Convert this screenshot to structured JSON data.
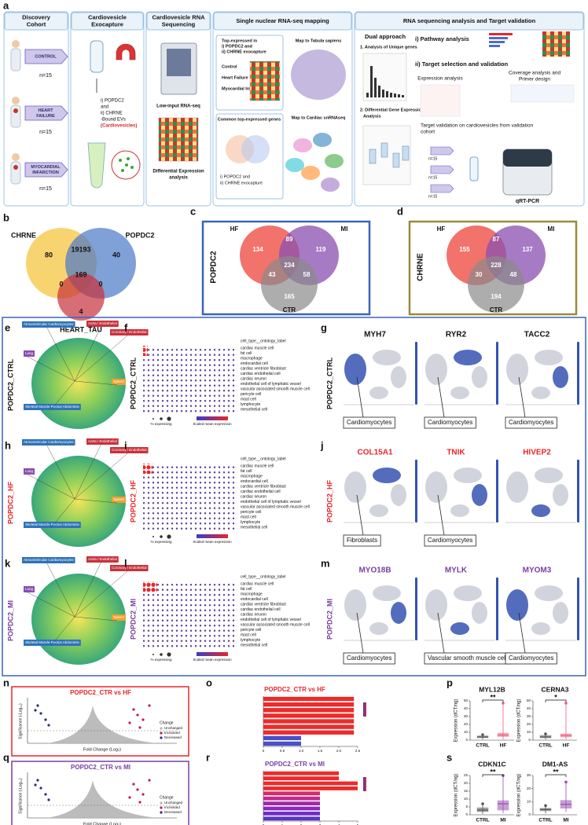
{
  "figure": {
    "a": {
      "label": "a",
      "stages": [
        [
          "Discovery",
          "Cohort"
        ],
        [
          "Cardiovesicle",
          "Exocapture"
        ],
        [
          "Cardiovesicle RNA",
          "Sequencing"
        ],
        [
          "Single nuclear RNA-seq mapping"
        ],
        [
          "RNA sequencing analysis and Target validation"
        ]
      ],
      "cohorts": [
        {
          "name": [
            "CONTROL"
          ],
          "n": "n=15"
        },
        {
          "name": [
            "HEART",
            "FAILURE"
          ],
          "n": "n=15"
        },
        {
          "name": [
            "MYOCARDIAL",
            "INFARCTION"
          ],
          "n": "n=15"
        }
      ],
      "exocapture": [
        "i) POPDC2",
        "and",
        "ii) CHRNE",
        "-Bound EVs",
        "(Cardiovesicles)"
      ],
      "sequencing": [
        "Low-input RNA-seq",
        "Differential Expression",
        "analysis"
      ],
      "mapping": {
        "top": [
          "Top-expressed in",
          "i) POPDC2 and",
          "ii) CHRNE exocapture"
        ],
        "groups": [
          "Control",
          "Heart Failure",
          "Myocardial Infarction"
        ],
        "tabula": "Map to Tabula sapiens",
        "common": "Common top-expressed genes",
        "common_sub": [
          "i) POPDC2 and",
          "ii) CHRNE exocapture"
        ],
        "cardiac": "Map to Cardiac snRNAseq"
      },
      "analysis": {
        "dual": "Dual approach",
        "unique": "1. Analysis of Unique genes",
        "dge": [
          "2. Differential Gene Expression",
          "Analysis"
        ],
        "pathway": "i) Pathway analysis",
        "target": "ii) Target selection and validation",
        "expression": "Expression analysis",
        "coverage": [
          "Coverage analysis and",
          "Primer design"
        ],
        "validation": [
          "Target validation on cardiovesicles from validation",
          "cohort"
        ],
        "n": [
          "n=15",
          "n=15",
          "n=15"
        ],
        "qpcr": "qRT-PCR"
      }
    },
    "b": {
      "label": "b",
      "sets": [
        "CHRNE",
        "POPDC2",
        "HEART_TAU"
      ],
      "counts": [
        80,
        19193,
        40,
        169,
        0,
        0,
        4
      ]
    },
    "c": {
      "label": "c",
      "name": "POPDC2",
      "sets": [
        "HF",
        "MI",
        "CTR"
      ],
      "counts": [
        134,
        89,
        119,
        43,
        234,
        58,
        165
      ]
    },
    "d": {
      "label": "d",
      "name": "CHRNE",
      "sets": [
        "HF",
        "MI",
        "CTR"
      ],
      "counts": [
        155,
        87,
        137,
        30,
        228,
        48,
        194
      ]
    },
    "umap_regions": [
      "Atrioventricular Cardiomyocytes",
      "Aorta / Endothelial",
      "Coronary / Endothelial",
      "Lung",
      "Spleen",
      "Skeletal Muscle Rectus Abdominis"
    ],
    "cell_type_header": "cell_type__ontology_label",
    "cell_types": [
      "cardiac muscle cell",
      "fat cell",
      "macrophage",
      "endocardial cell",
      "cardiac ventricle fibroblast",
      "cardiac endothelial cell",
      "cardiac neuron",
      "endothelial cell of lymphatic vessel",
      "vascular associated smooth muscle cell",
      "pericyte cell",
      "mast cell",
      "lymphocyte",
      "mesothelial cell"
    ],
    "dot_legend": [
      "% expressing",
      "Scaled mean expression"
    ],
    "rows": [
      {
        "labels": [
          "e",
          "f",
          "g"
        ],
        "name": "POPDC2_CTRL",
        "color": "#111111",
        "genes": [
          "MYH7",
          "RYR2",
          "TACC2"
        ],
        "gene_color": "#111111",
        "callouts": [
          "Cardiomyocytes",
          "Cardiomyocytes",
          "Cardiomyocytes"
        ]
      },
      {
        "labels": [
          "h",
          "i",
          "j"
        ],
        "name": "POPDC2_HF",
        "color": "#e8262b",
        "genes": [
          "COL15A1",
          "TNIK",
          "HIVEP2"
        ],
        "gene_color": "#e8262b",
        "callouts": [
          "Fibroblasts",
          "Cardiomyocytes",
          null
        ]
      },
      {
        "labels": [
          "k",
          "l",
          "m"
        ],
        "name": "POPDC2_MI",
        "color": "#7b3fa0",
        "genes": [
          "MYO18B",
          "MYLK",
          "MYOM3"
        ],
        "gene_color": "#7b3fa0",
        "callouts": [
          "Cardiomyocytes",
          "Vascular smooth muscle cell",
          "Cardiomyocytes"
        ]
      }
    ],
    "n": {
      "label": "n",
      "title": "POPDC2_CTR vs HF",
      "color": "#e8262b",
      "xlabel": "Fold Change (Log₂)",
      "ylabel": "Significance (-Log₁₀)",
      "legend_title": "Change",
      "legend": [
        "Unchanged",
        "Increased",
        "Decreased"
      ]
    },
    "q": {
      "label": "q",
      "title": "POPDC2_CTR vs MI",
      "color": "#7b3fa0",
      "xlabel": "Fold Change (Log₂)",
      "ylabel": "Significance (-Log₁₀)",
      "legend_title": "Change",
      "legend": [
        "Unchanged",
        "Increased",
        "Decreased"
      ]
    },
    "o": {
      "label": "o",
      "type": "bar",
      "orientation": "horizontal",
      "title": "POPDC2_CTR vs HF",
      "title_color": "#e8262b",
      "categories": [
        null,
        null,
        null,
        null,
        null,
        null,
        null,
        null,
        null
      ],
      "values": [
        2.4,
        2.4,
        2.4,
        2.4,
        2.4,
        2.4,
        2.4,
        1,
        1
      ],
      "colors": [
        "#ee2a2a",
        "#ee2a2a",
        "#ee2a2a",
        "#ee2a2a",
        "#ee2a2a",
        "#ee2a2a",
        "#ee2a2a",
        "#4b4fc8",
        "#4b4fc8"
      ],
      "xlim": [
        0,
        2.5
      ],
      "xticks": [
        0,
        0.5,
        {
          "value": 1,
          "label": "1.0"
        },
        1.5,
        {
          "value": 2,
          "label": "2.0"
        },
        2.5
      ]
    },
    "r": {
      "label": "r",
      "type": "bar",
      "orientation": "horizontal",
      "title": "POPDC2_CTR vs MI",
      "title_color": "#7b3fa0",
      "categories": [
        null,
        null,
        null,
        null,
        null,
        null,
        null,
        null,
        null,
        null
      ],
      "values": [
        4,
        4,
        5,
        5,
        3,
        3,
        3,
        3,
        3,
        3
      ],
      "colors": [
        "#ee2a2a",
        "#ee2a2a",
        "#ee2a2a",
        "#ee2a2a",
        "#d92a6a",
        "#c02a8a",
        "#a02aa8",
        "#8a2ab8",
        "#6f2ec4",
        "#5a35c8"
      ],
      "xlim": [
        0,
        5
      ],
      "xticks": [
        0,
        1,
        2,
        3,
        4,
        5
      ]
    },
    "p": {
      "label": "p",
      "charts": [
        {
          "title": "MYL12B",
          "categories": [
            "CTRL",
            "HF"
          ],
          "colors": [
            "#555555",
            "#f0607a"
          ],
          "significance": "**",
          "ylabel": "Expression (dCT/ng)",
          "ylim": [
            0,
            50
          ],
          "yticks": [
            0,
            10,
            20,
            30,
            40,
            50
          ],
          "boxes": [
            {
              "min": 1,
              "q1": 3,
              "median": 4,
              "q3": 5.5,
              "max": 7
            },
            {
              "min": 1,
              "q1": 4.5,
              "median": 6.5,
              "q3": 9,
              "max": 47
            }
          ]
        },
        {
          "title": "CERNA3",
          "categories": [
            "CTRL",
            "HF"
          ],
          "colors": [
            "#555555",
            "#f0607a"
          ],
          "significance": "*",
          "ylabel": "Expression (dCT/ng)",
          "ylim": [
            0,
            50
          ],
          "yticks": [
            0,
            10,
            20,
            30,
            40,
            50
          ],
          "boxes": [
            {
              "min": 1,
              "q1": 3,
              "median": 4,
              "q3": 6,
              "max": 8
            },
            {
              "min": 1,
              "q1": 4,
              "median": 6,
              "q3": 8,
              "max": 47
            }
          ]
        }
      ]
    },
    "s": {
      "label": "s",
      "charts": [
        {
          "title": "CDKN1C",
          "categories": [
            "CTRL",
            "MI"
          ],
          "colors": [
            "#555555",
            "#9b4fb3"
          ],
          "significance": "**",
          "ylabel": "Expression (dCT/ng)",
          "ylim": [
            0,
            25
          ],
          "yticks": [
            0,
            5,
            10,
            15,
            20,
            25
          ],
          "boxes": [
            {
              "min": 0.5,
              "q1": 2,
              "median": 3,
              "q3": 4.5,
              "max": 7
            },
            {
              "min": 1,
              "q1": 3,
              "median": 7,
              "q3": 9,
              "max": 25
            }
          ]
        },
        {
          "title": "DM1-AS",
          "categories": [
            "CTRL",
            "MI"
          ],
          "colors": [
            "#555555",
            "#9b4fb3"
          ],
          "significance": "**",
          "ylabel": "Expression (dCT/ng)",
          "ylim": [
            0,
            30
          ],
          "yticks": [
            0,
            10,
            20,
            30
          ],
          "boxes": [
            {
              "min": 1,
              "q1": 3,
              "median": 4,
              "q3": 5,
              "max": 7
            },
            {
              "min": 2,
              "q1": 5,
              "median": 8,
              "q3": 11,
              "max": 25
            }
          ]
        }
      ]
    }
  }
}
